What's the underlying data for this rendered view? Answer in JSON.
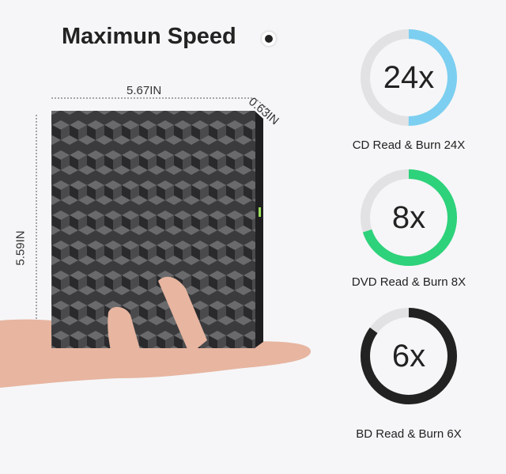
{
  "title": "Maximun Speed",
  "dimensions": {
    "width": "5.67IN",
    "depth": "0.63IN",
    "height": "5.59IN"
  },
  "speeds": [
    {
      "value": "24x",
      "label": "CD Read & Burn 24X",
      "fraction": 0.5,
      "color": "#7ccff0"
    },
    {
      "value": "8x",
      "label": "DVD Read & Burn 8X",
      "fraction": 0.7,
      "color": "#2dd27a"
    },
    {
      "value": "6x",
      "label": "BD Read & Burn 6X",
      "fraction": 0.85,
      "color": "#222222"
    }
  ],
  "colors": {
    "track": "#e2e2e4",
    "device": "#3a3a3c",
    "hand": "#e8b8a4"
  }
}
